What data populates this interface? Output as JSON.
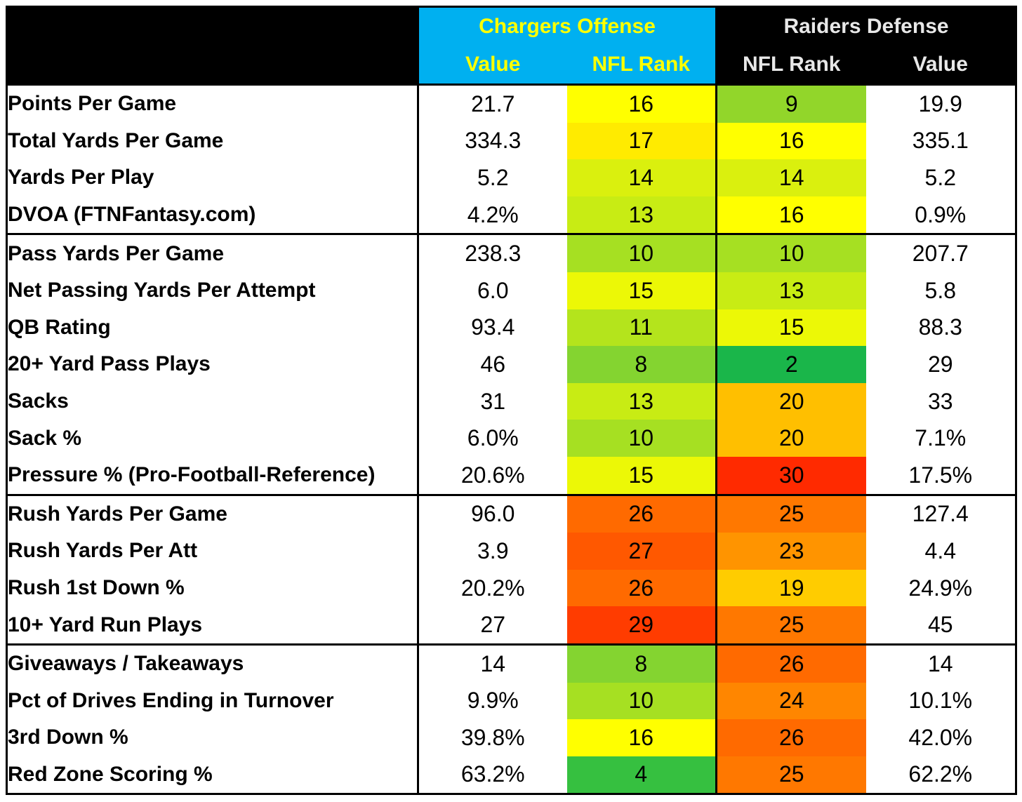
{
  "header": {
    "offense_team": "Chargers Offense",
    "defense_team": "Raiders Defense",
    "offense_value_label": "Value",
    "offense_rank_label": "NFL Rank",
    "defense_rank_label": "NFL Rank",
    "defense_value_label": "Value"
  },
  "colors": {
    "offense_header_bg": "#00b0f0",
    "offense_header_text": "#ffff00",
    "header_bg": "#000000",
    "defense_header_text": "#e8e8e8"
  },
  "rows": [
    {
      "label": "Points Per Game",
      "off_value": "21.7",
      "off_rank": "16",
      "def_rank": "9",
      "def_value": "19.9",
      "off_color": "#ffff00",
      "def_color": "#92d62a",
      "group_start": true
    },
    {
      "label": "Total Yards Per Game",
      "off_value": "334.3",
      "off_rank": "17",
      "def_rank": "16",
      "def_value": "335.1",
      "off_color": "#ffeb00",
      "def_color": "#ffff00",
      "group_start": false
    },
    {
      "label": "Yards Per Play",
      "off_value": "5.2",
      "off_rank": "14",
      "def_rank": "14",
      "def_value": "5.2",
      "off_color": "#daf00e",
      "def_color": "#daf00e",
      "group_start": false
    },
    {
      "label": "DVOA (FTNFantasy.com)",
      "off_value": "4.2%",
      "off_rank": "13",
      "def_rank": "16",
      "def_value": "0.9%",
      "off_color": "#c8ec14",
      "def_color": "#ffff00",
      "group_start": false
    },
    {
      "label": "Pass Yards Per Game",
      "off_value": "238.3",
      "off_rank": "10",
      "def_rank": "10",
      "def_value": "207.7",
      "off_color": "#a6e022",
      "def_color": "#a6e022",
      "group_start": true
    },
    {
      "label": "Net Passing Yards Per Attempt",
      "off_value": "6.0",
      "off_rank": "15",
      "def_rank": "13",
      "def_value": "5.8",
      "off_color": "#ecf806",
      "def_color": "#c8ec14",
      "group_start": false
    },
    {
      "label": "QB Rating",
      "off_value": "93.4",
      "off_rank": "11",
      "def_rank": "15",
      "def_value": "88.3",
      "off_color": "#b4e41c",
      "def_color": "#ecf806",
      "group_start": false
    },
    {
      "label": "20+ Yard Pass Plays",
      "off_value": "46",
      "off_rank": "8",
      "def_rank": "2",
      "def_value": "29",
      "off_color": "#84d430",
      "def_color": "#1ab64a",
      "group_start": false
    },
    {
      "label": "Sacks",
      "off_value": "31",
      "off_rank": "13",
      "def_rank": "20",
      "def_value": "33",
      "off_color": "#c8ec14",
      "def_color": "#ffbf00",
      "group_start": false
    },
    {
      "label": "Sack %",
      "off_value": "6.0%",
      "off_rank": "10",
      "def_rank": "20",
      "def_value": "7.1%",
      "off_color": "#a6e022",
      "def_color": "#ffbf00",
      "group_start": false
    },
    {
      "label": "Pressure % (Pro-Football-Reference)",
      "off_value": "20.6%",
      "off_rank": "15",
      "def_rank": "30",
      "def_value": "17.5%",
      "off_color": "#ecf806",
      "def_color": "#ff2a00",
      "group_start": false
    },
    {
      "label": "Rush Yards Per Game",
      "off_value": "96.0",
      "off_rank": "26",
      "def_rank": "25",
      "def_value": "127.4",
      "off_color": "#ff6a00",
      "def_color": "#ff7800",
      "group_start": true
    },
    {
      "label": "Rush Yards Per Att",
      "off_value": "3.9",
      "off_rank": "27",
      "def_rank": "23",
      "def_value": "4.4",
      "off_color": "#ff5800",
      "def_color": "#ff9400",
      "group_start": false
    },
    {
      "label": "Rush 1st Down %",
      "off_value": "20.2%",
      "off_rank": "26",
      "def_rank": "19",
      "def_value": "24.9%",
      "off_color": "#ff6a00",
      "def_color": "#ffcc00",
      "group_start": false
    },
    {
      "label": "10+ Yard Run Plays",
      "off_value": "27",
      "off_rank": "29",
      "def_rank": "25",
      "def_value": "45",
      "off_color": "#ff3c00",
      "def_color": "#ff7800",
      "group_start": false
    },
    {
      "label": "Giveaways / Takeaways",
      "off_value": "14",
      "off_rank": "8",
      "def_rank": "26",
      "def_value": "14",
      "off_color": "#84d430",
      "def_color": "#ff6a00",
      "group_start": true
    },
    {
      "label": "Pct of Drives Ending in Turnover",
      "off_value": "9.9%",
      "off_rank": "10",
      "def_rank": "24",
      "def_value": "10.1%",
      "off_color": "#a6e022",
      "def_color": "#ff8600",
      "group_start": false
    },
    {
      "label": "3rd Down %",
      "off_value": "39.8%",
      "off_rank": "16",
      "def_rank": "26",
      "def_value": "42.0%",
      "off_color": "#ffff00",
      "def_color": "#ff6a00",
      "group_start": false
    },
    {
      "label": "Red Zone Scoring %",
      "off_value": "63.2%",
      "off_rank": "4",
      "def_rank": "25",
      "def_value": "62.2%",
      "off_color": "#36c040",
      "def_color": "#ff7800",
      "group_start": false
    }
  ]
}
